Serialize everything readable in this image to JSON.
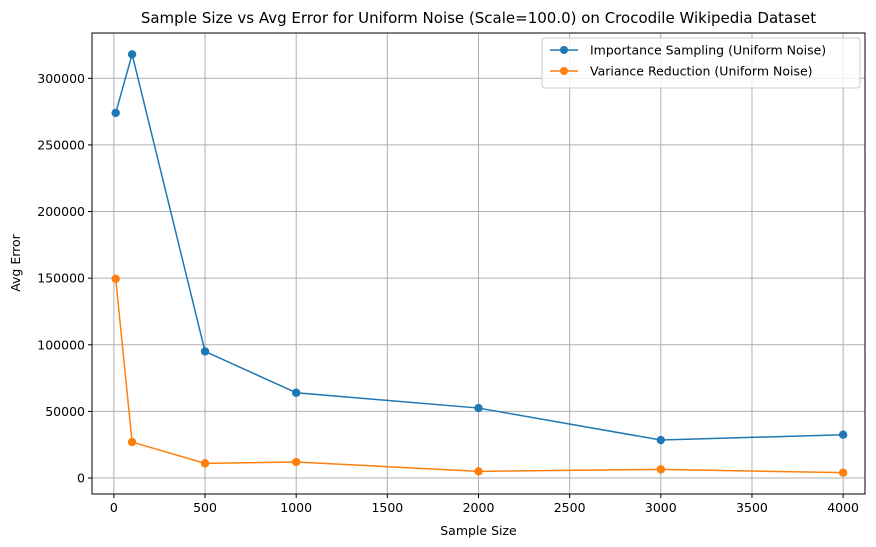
{
  "chart_data": {
    "type": "line",
    "title": "Sample Size vs Avg Error for Uniform Noise (Scale=100.0) on Crocodile Wikipedia Dataset",
    "xlabel": "Sample Size",
    "ylabel": "Avg Error",
    "xlim": [
      -120,
      4120
    ],
    "ylim": [
      -12000,
      334000
    ],
    "xticks": [
      0,
      500,
      1000,
      1500,
      2000,
      2500,
      3000,
      3500,
      4000
    ],
    "xtick_labels": [
      "0",
      "500",
      "1000",
      "1500",
      "2000",
      "2500",
      "3000",
      "3500",
      "4000"
    ],
    "yticks": [
      0,
      50000,
      100000,
      150000,
      200000,
      250000,
      300000
    ],
    "ytick_labels": [
      "0",
      "50000",
      "100000",
      "150000",
      "200000",
      "250000",
      "300000"
    ],
    "grid": true,
    "legend_position": "top-right",
    "x": [
      10,
      100,
      500,
      1000,
      2000,
      3000,
      4000
    ],
    "series": [
      {
        "name": "Importance Sampling (Uniform Noise)",
        "color": "#1f77b4",
        "values": [
          274000,
          318000,
          95000,
          64000,
          52500,
          28500,
          32500
        ]
      },
      {
        "name": "Variance Reduction (Uniform Noise)",
        "color": "#ff7f0e",
        "values": [
          149500,
          27000,
          11000,
          12000,
          5000,
          6500,
          4000
        ]
      }
    ]
  }
}
